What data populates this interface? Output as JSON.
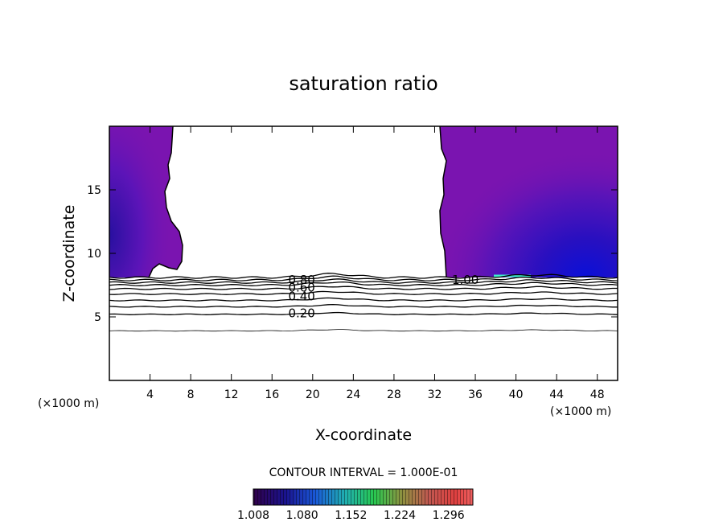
{
  "chart_data": {
    "type": "contour",
    "title": "saturation ratio",
    "xlabel": "X-coordinate",
    "ylabel": "Z-coordinate",
    "x_unit": "(×1000 m)",
    "z_unit": "(×1000 m)",
    "xlim": [
      0,
      50
    ],
    "ylim": [
      0,
      20
    ],
    "xticks": [
      4,
      8,
      12,
      16,
      20,
      24,
      28,
      32,
      36,
      40,
      44,
      48
    ],
    "yticks": [
      5,
      10,
      15
    ],
    "contour_interval_text": "CONTOUR INTERVAL = 1.000E-01",
    "contour_labels": [
      {
        "text": "0.20",
        "x": 17.6,
        "z": 5.3
      },
      {
        "text": "0.40",
        "x": 17.6,
        "z": 6.6
      },
      {
        "text": "0.60",
        "x": 17.6,
        "z": 7.3
      },
      {
        "text": "0.80",
        "x": 17.6,
        "z": 7.9
      },
      {
        "text": "1.00",
        "x": 33.7,
        "z": 7.9
      }
    ],
    "contour_line_heights_km": [
      3.9,
      5.2,
      5.8,
      6.3,
      6.8,
      7.2,
      7.5,
      7.7,
      7.9,
      8.1
    ],
    "saturated_regions": [
      {
        "x_range": [
          0,
          7.2
        ],
        "z_range": [
          8.0,
          20
        ]
      },
      {
        "x_range": [
          32.5,
          50
        ],
        "z_range": [
          8.0,
          20
        ]
      }
    ],
    "colorbar": {
      "ticks": [
        "1.008",
        "1.080",
        "1.152",
        "1.224",
        "1.296"
      ],
      "range": [
        1.008,
        1.332
      ]
    }
  }
}
